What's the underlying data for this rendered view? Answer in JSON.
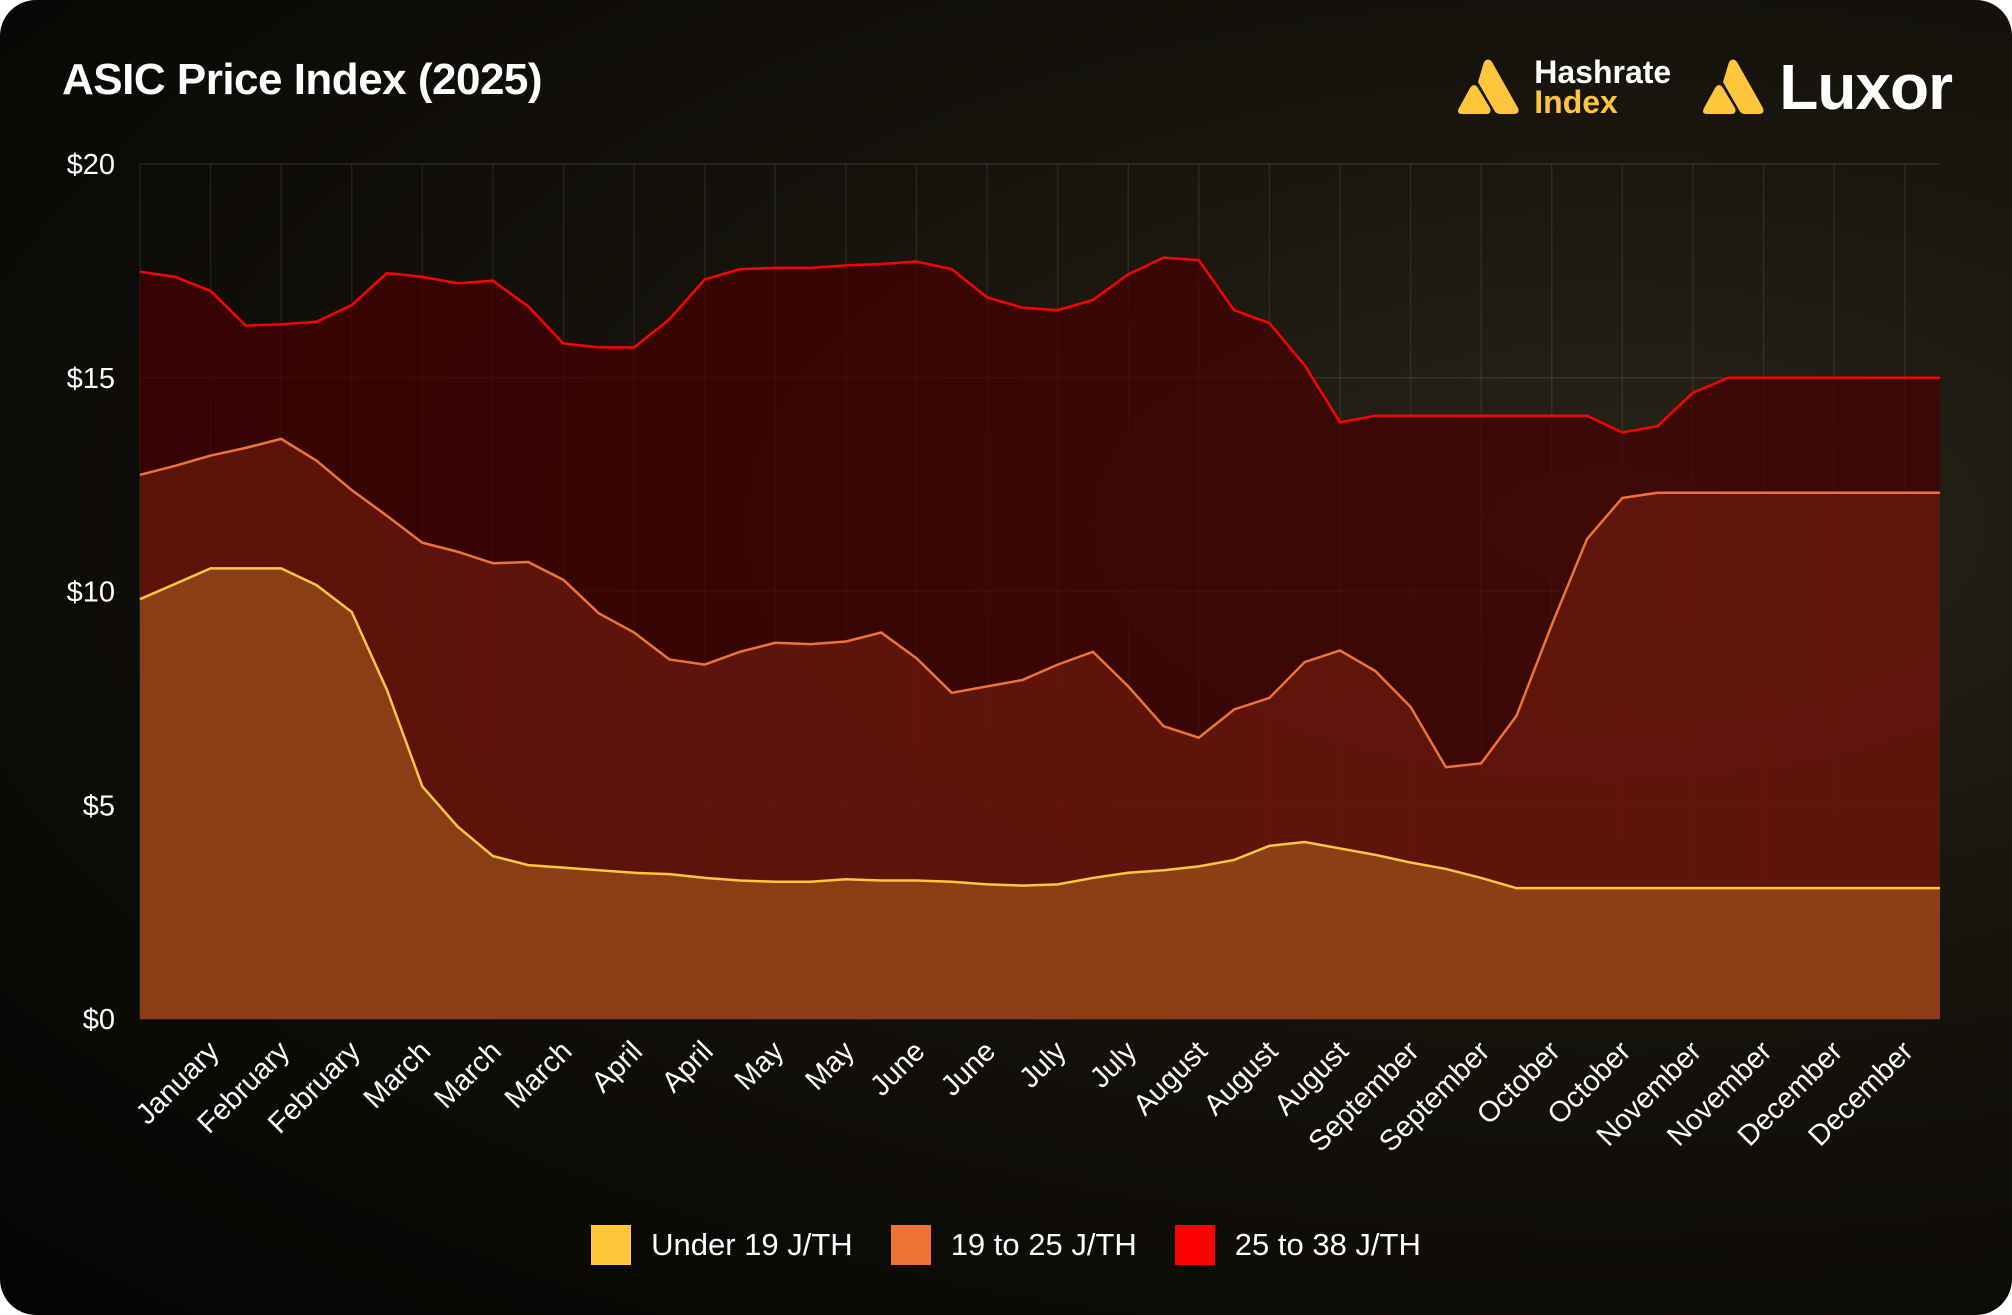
{
  "title": "ASIC Price Index (2025)",
  "logos": {
    "hashrate_line1": "Hashrate",
    "hashrate_line2": "Index",
    "luxor": "Luxor"
  },
  "chart_data": {
    "type": "area",
    "title": "ASIC Price Index (2025)",
    "xlabel": "",
    "ylabel": "",
    "ylim": [
      0,
      20
    ],
    "yticks": [
      "$0",
      "$5",
      "$10",
      "$15",
      "$20"
    ],
    "ytick_values": [
      0,
      5,
      10,
      15,
      20
    ],
    "grid": true,
    "legend_position": "bottom",
    "x_tick_labels": [
      "January",
      "February",
      "February",
      "March",
      "March",
      "March",
      "April",
      "April",
      "May",
      "May",
      "June",
      "June",
      "July",
      "July",
      "August",
      "August",
      "August",
      "September",
      "September",
      "October",
      "October",
      "November",
      "November",
      "December",
      "December"
    ],
    "series": [
      {
        "name": "25 to 38 J/TH",
        "color": "#ff0000",
        "values": [
          17.48,
          17.36,
          17.03,
          16.22,
          16.25,
          16.31,
          16.7,
          17.45,
          17.36,
          17.21,
          17.27,
          16.67,
          15.8,
          15.71,
          15.71,
          16.37,
          17.3,
          17.54,
          17.57,
          17.57,
          17.63,
          17.66,
          17.72,
          17.54,
          16.88,
          16.64,
          16.58,
          16.82,
          17.42,
          17.81,
          17.75,
          16.58,
          16.28,
          15.29,
          13.96,
          14.11,
          14.11,
          14.11,
          14.11,
          14.11,
          14.11,
          14.11,
          13.72,
          13.87,
          14.65,
          15.0,
          15.0,
          15.0,
          15.0,
          15.0,
          15.0,
          15.0
        ]
      },
      {
        "name": "19 to 25 J/TH",
        "color": "#ee7436",
        "values": [
          12.73,
          12.94,
          13.18,
          13.36,
          13.57,
          13.06,
          12.37,
          11.77,
          11.14,
          10.93,
          10.66,
          10.69,
          10.27,
          9.49,
          9.04,
          8.41,
          8.29,
          8.59,
          8.8,
          8.77,
          8.83,
          9.04,
          8.44,
          7.63,
          7.78,
          7.93,
          8.29,
          8.59,
          7.78,
          6.85,
          6.58,
          7.24,
          7.51,
          8.35,
          8.62,
          8.14,
          7.3,
          5.89,
          5.98,
          7.09,
          9.22,
          11.23,
          12.19,
          12.31,
          12.31,
          12.31,
          12.31,
          12.31,
          12.31,
          12.31,
          12.31,
          12.31
        ]
      },
      {
        "name": "Under 19 J/TH",
        "color": "#ffc53d",
        "values": [
          9.82,
          10.18,
          10.54,
          10.54,
          10.54,
          10.15,
          9.52,
          7.69,
          5.44,
          4.5,
          3.81,
          3.6,
          3.54,
          3.48,
          3.42,
          3.39,
          3.3,
          3.24,
          3.21,
          3.21,
          3.27,
          3.24,
          3.24,
          3.21,
          3.15,
          3.12,
          3.15,
          3.3,
          3.42,
          3.48,
          3.57,
          3.72,
          4.05,
          4.14,
          3.99,
          3.84,
          3.66,
          3.51,
          3.3,
          3.06,
          3.06,
          3.06,
          3.06,
          3.06,
          3.06,
          3.06,
          3.06,
          3.06,
          3.06,
          3.06,
          3.06,
          3.06
        ]
      }
    ]
  },
  "legend": [
    {
      "label": "Under 19 J/TH",
      "color": "#ffc53d"
    },
    {
      "label": "19 to 25 J/TH",
      "color": "#ee7436"
    },
    {
      "label": "25 to 38 J/TH",
      "color": "#ff0000"
    }
  ]
}
